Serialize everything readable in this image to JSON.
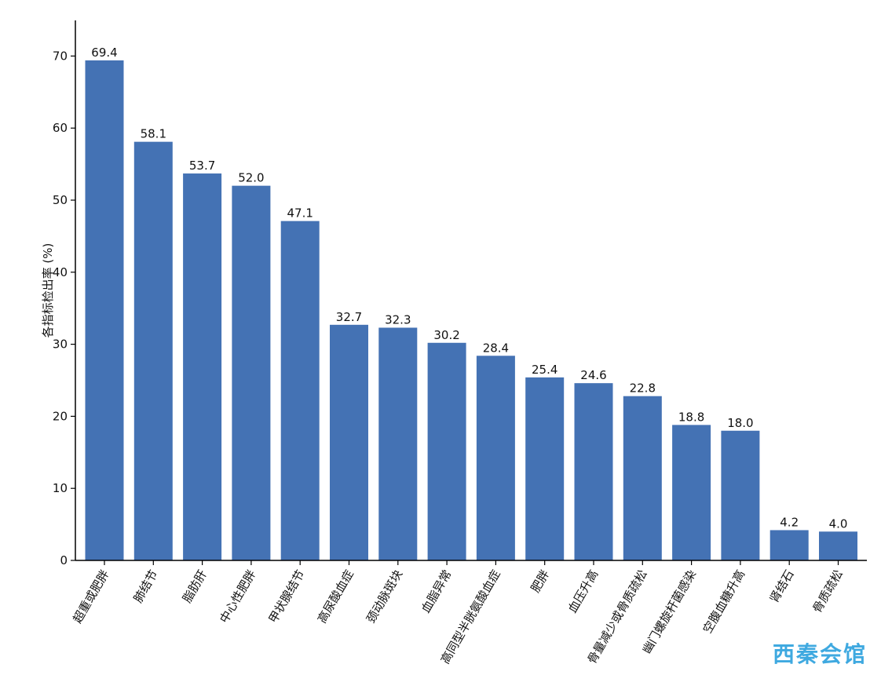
{
  "chart_data": {
    "type": "bar",
    "ylabel": "各指标检出率 (%)",
    "ylim": [
      0,
      75
    ],
    "yticks": [
      0,
      10,
      20,
      30,
      40,
      50,
      60,
      70
    ],
    "bar_color": "#4472b4",
    "categories": [
      "超重或肥胖",
      "肺结节",
      "脂肪肝",
      "中心性肥胖",
      "甲状腺结节",
      "高尿酸血症",
      "颈动脉斑块",
      "血脂异常",
      "高同型半胱氨酸血症",
      "肥胖",
      "血压升高",
      "骨量减少或骨质疏松",
      "幽门螺旋杆菌感染",
      "空腹血糖升高",
      "肾结石",
      "骨质疏松"
    ],
    "values": [
      69.4,
      58.1,
      53.7,
      52.0,
      47.1,
      32.7,
      32.3,
      30.2,
      28.4,
      25.4,
      24.6,
      22.8,
      18.8,
      18.0,
      4.2,
      4.0
    ],
    "value_labels": [
      "69.4",
      "58.1",
      "53.7",
      "52.0",
      "47.1",
      "32.7",
      "32.3",
      "30.2",
      "28.4",
      "25.4",
      "24.6",
      "22.8",
      "18.8",
      "18.0",
      "4.2",
      "4.0"
    ],
    "grid": false
  },
  "watermark": {
    "text": "西秦会馆",
    "color": "#3fa9e0",
    "accent": "#f0a020"
  }
}
